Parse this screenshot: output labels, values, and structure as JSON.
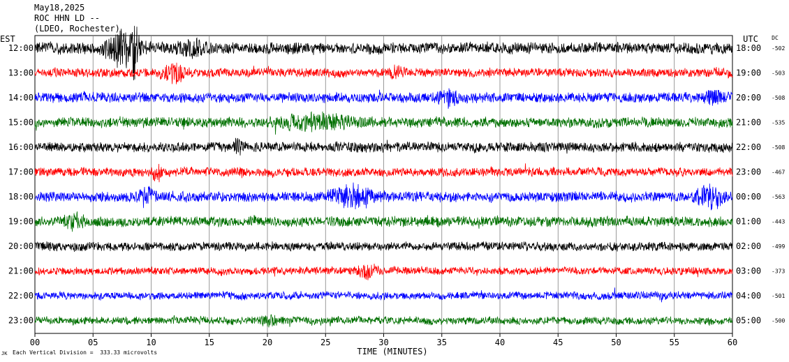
{
  "header": {
    "date": "May18,2025",
    "station": "ROC HHN LD --",
    "network": "(LDEO, Rochester)"
  },
  "footer": {
    "mark": "JK",
    "scale_note": "Each Vertical Division =  333.33 microvolts"
  },
  "chart_data": {
    "type": "line",
    "title": "ROC HHN LD --",
    "xlabel": "TIME (MINUTES)",
    "left_axis_label": "EST",
    "right_axis_label": "UTC",
    "dc_label": "DC",
    "xlim": [
      0,
      60
    ],
    "x_ticks": [
      "00",
      "05",
      "10",
      "15",
      "20",
      "25",
      "30",
      "35",
      "40",
      "45",
      "50",
      "55",
      "60"
    ],
    "grid": true,
    "colors": [
      "#000000",
      "#ff0000",
      "#0000ff",
      "#007000"
    ],
    "traces": [
      {
        "est": "12:00",
        "utc": "18:00",
        "dc": "-502",
        "color": "#000000",
        "amplitude": 9,
        "seed": 11,
        "events": [
          {
            "t": 7.5,
            "dur": 2.0,
            "amp": 24
          },
          {
            "t": 8.5,
            "dur": 0.4,
            "amp": 30
          },
          {
            "t": 13.5,
            "dur": 1.5,
            "amp": 10
          }
        ]
      },
      {
        "est": "13:00",
        "utc": "19:00",
        "dc": "-503",
        "color": "#ff0000",
        "amplitude": 7,
        "seed": 23,
        "events": [
          {
            "t": 12.0,
            "dur": 1.2,
            "amp": 12
          },
          {
            "t": 31.0,
            "dur": 1.0,
            "amp": 6
          }
        ]
      },
      {
        "est": "14:00",
        "utc": "20:00",
        "dc": "-508",
        "color": "#0000ff",
        "amplitude": 8,
        "seed": 37,
        "events": [
          {
            "t": 35.5,
            "dur": 1.5,
            "amp": 9
          },
          {
            "t": 58.5,
            "dur": 1.0,
            "amp": 8
          }
        ]
      },
      {
        "est": "15:00",
        "utc": "21:00",
        "dc": "-535",
        "color": "#007000",
        "amplitude": 8,
        "seed": 41,
        "events": [
          {
            "t": 24.0,
            "dur": 4.0,
            "amp": 9
          }
        ]
      },
      {
        "est": "16:00",
        "utc": "22:00",
        "dc": "-508",
        "color": "#000000",
        "amplitude": 8,
        "seed": 53,
        "events": [
          {
            "t": 17.5,
            "dur": 0.4,
            "amp": 14
          }
        ]
      },
      {
        "est": "17:00",
        "utc": "23:00",
        "dc": "-467",
        "color": "#ff0000",
        "amplitude": 7,
        "seed": 61,
        "events": [
          {
            "t": 10.5,
            "dur": 0.5,
            "amp": 12
          }
        ]
      },
      {
        "est": "18:00",
        "utc": "00:00",
        "dc": "-563",
        "color": "#0000ff",
        "amplitude": 8,
        "seed": 71,
        "events": [
          {
            "t": 9.5,
            "dur": 1.0,
            "amp": 10
          },
          {
            "t": 27.5,
            "dur": 2.5,
            "amp": 14
          },
          {
            "t": 58.0,
            "dur": 1.5,
            "amp": 16
          }
        ]
      },
      {
        "est": "19:00",
        "utc": "01:00",
        "dc": "-443",
        "color": "#007000",
        "amplitude": 8,
        "seed": 83,
        "events": [
          {
            "t": 3.5,
            "dur": 1.0,
            "amp": 10
          }
        ]
      },
      {
        "est": "20:00",
        "utc": "02:00",
        "dc": "-499",
        "color": "#000000",
        "amplitude": 7,
        "seed": 97,
        "events": []
      },
      {
        "est": "21:00",
        "utc": "03:00",
        "dc": "-373",
        "color": "#ff0000",
        "amplitude": 6,
        "seed": 103,
        "events": [
          {
            "t": 28.5,
            "dur": 1.2,
            "amp": 8
          }
        ]
      },
      {
        "est": "22:00",
        "utc": "04:00",
        "dc": "-501",
        "color": "#0000ff",
        "amplitude": 6,
        "seed": 113,
        "events": []
      },
      {
        "est": "23:00",
        "utc": "05:00",
        "dc": "-500",
        "color": "#007000",
        "amplitude": 6,
        "seed": 127,
        "events": [
          {
            "t": 20.0,
            "dur": 1.0,
            "amp": 6
          }
        ]
      }
    ]
  }
}
